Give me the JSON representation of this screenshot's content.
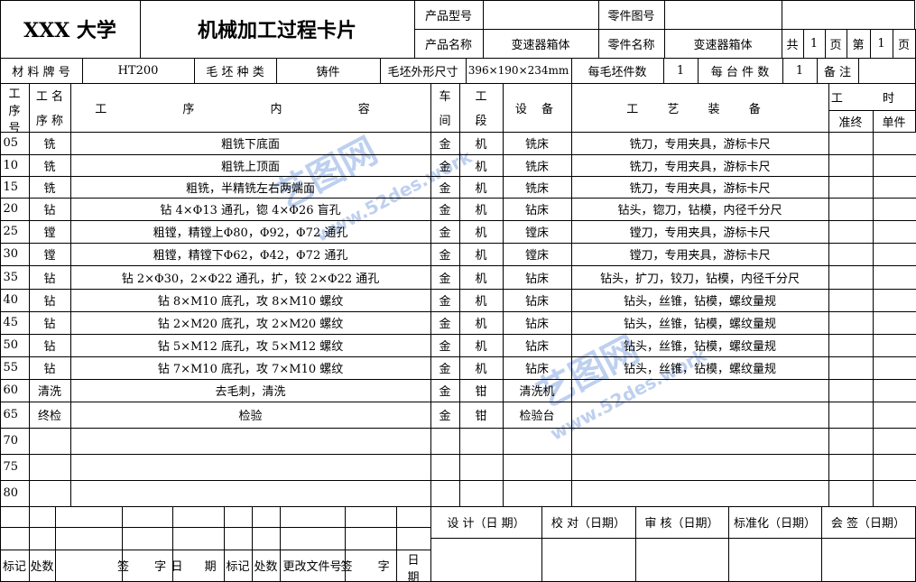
{
  "header": {
    "school": "XXX 大学",
    "title": "机械加工过程卡片",
    "product_model_label": "产品型号",
    "product_model": "",
    "part_drawing_label": "零件图号",
    "part_drawing": "",
    "product_name_label": "产品名称",
    "product_name": "变速器箱体",
    "part_name_label": "零件名称",
    "part_name": "变速器箱体",
    "total_label": "共",
    "total_pages": "1",
    "page_unit": "页",
    "page_label": "第",
    "page_no": "1",
    "page_unit2": "页"
  },
  "info": {
    "material_label": "材 料 牌 号",
    "material": "HT200",
    "blank_type_label": "毛 坯 种 类",
    "blank_type": "铸件",
    "blank_size_label": "毛坯外形尺寸",
    "blank_size": "396×190×234mm",
    "per_blank_label": "每毛坯件数",
    "per_blank": "1",
    "per_unit_label": "每 台 件 数",
    "per_unit": "1",
    "remark_label": "备 注"
  },
  "columns": {
    "seq": [
      "工",
      "序",
      "号"
    ],
    "name": [
      "工 名",
      "序 称"
    ],
    "content": "工 序 内 容",
    "workshop": [
      "车",
      "间"
    ],
    "section": [
      "工",
      "段"
    ],
    "equipment": "设 备",
    "tooling": "工 艺 装 备",
    "time": "工 时",
    "prep": "准终",
    "unit": "单件"
  },
  "rows": [
    [
      "05",
      "铣",
      "粗铣下底面",
      "金",
      "机",
      "铣床",
      "铣刀，专用夹具，游标卡尺"
    ],
    [
      "10",
      "铣",
      "粗铣上顶面",
      "金",
      "机",
      "铣床",
      "铣刀，专用夹具，游标卡尺"
    ],
    [
      "15",
      "铣",
      "粗铣，半精铣左右两端面",
      "金",
      "机",
      "铣床",
      "铣刀，专用夹具，游标卡尺"
    ],
    [
      "20",
      "钻",
      "钻 4×Φ13 通孔，锪 4×Φ26 盲孔",
      "金",
      "机",
      "钻床",
      "钻头，锪刀，钻模，内径千分尺"
    ],
    [
      "25",
      "镗",
      "粗镗，精镗上Φ80，Φ92，Φ72 通孔",
      "金",
      "机",
      "镗床",
      "镗刀，专用夹具，游标卡尺"
    ],
    [
      "30",
      "镗",
      "粗镗，精镗下Φ62，Φ42，Φ72 通孔",
      "金",
      "机",
      "镗床",
      "镗刀，专用夹具，游标卡尺"
    ],
    [
      "35",
      "钻",
      "钻 2×Φ30，2×Φ22 通孔，扩，铰 2×Φ22 通孔",
      "金",
      "机",
      "钻床",
      "钻头，扩刀，铰刀，钻模，内径千分尺"
    ],
    [
      "40",
      "钻",
      "钻 8×M10 底孔，攻 8×M10 螺纹",
      "金",
      "机",
      "钻床",
      "钻头，丝锥，钻模，螺纹量规"
    ],
    [
      "45",
      "钻",
      "钻 2×M20 底孔，攻 2×M20 螺纹",
      "金",
      "机",
      "钻床",
      "钻头，丝锥，钻模，螺纹量规"
    ],
    [
      "50",
      "钻",
      "钻 5×M12 底孔，攻 5×M12 螺纹",
      "金",
      "机",
      "钻床",
      "钻头，丝锥，钻模，螺纹量规"
    ],
    [
      "55",
      "钻",
      "钻 7×M10 底孔，攻 7×M10 螺纹",
      "金",
      "机",
      "钻床",
      "钻头，丝锥，钻模，螺纹量规"
    ],
    [
      "60",
      "清洗",
      "去毛刺，清洗",
      "金",
      "钳",
      "清洗机",
      ""
    ],
    [
      "65",
      "终检",
      "检验",
      "金",
      "钳",
      "检验台",
      ""
    ],
    [
      "70",
      "",
      "",
      "",
      "",
      "",
      ""
    ],
    [
      "75",
      "",
      "",
      "",
      "",
      "",
      ""
    ],
    [
      "80",
      "",
      "",
      "",
      "",
      "",
      ""
    ]
  ],
  "footer": {
    "mark": "标记",
    "count": "处数",
    "sign": "签 字",
    "date": "日 期",
    "mark2": "标记",
    "count2": "处数",
    "change_doc": "更改文件号",
    "sign2": "签 字",
    "date2": [
      "日",
      "期"
    ],
    "design": "设 计（日 期）",
    "check": "校 对（日期）",
    "review": "审 核（日期）",
    "standard": "标准化（日期）",
    "countersign": "会 签（日期）"
  },
  "watermark": {
    "text1": "艺图网",
    "text2": "www.52des.work"
  }
}
